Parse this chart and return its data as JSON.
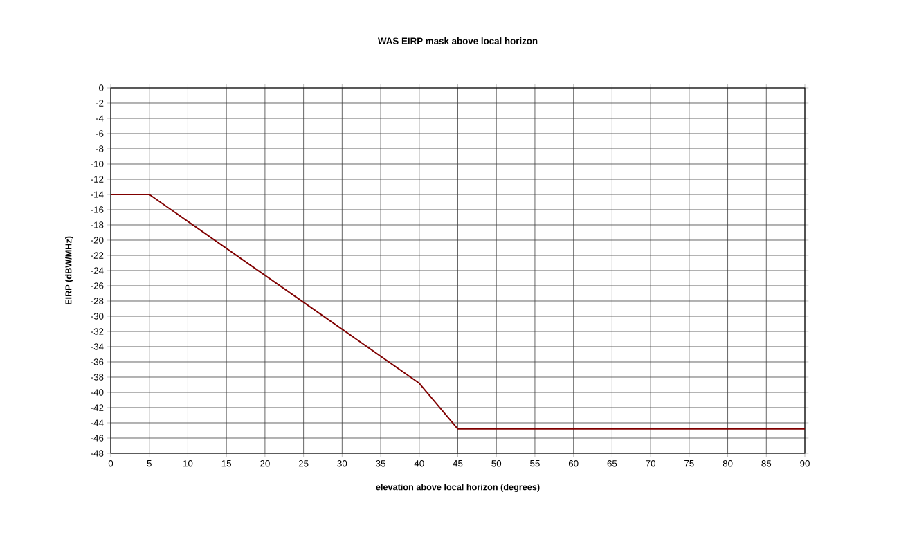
{
  "chart_data": {
    "type": "line",
    "title": "WAS EIRP mask above local horizon",
    "xlabel": "elevation above local horizon (degrees)",
    "ylabel": "EIRP (dBW/MHz)",
    "x": [
      0,
      5,
      40,
      45,
      90
    ],
    "series": [
      {
        "color": "#800000",
        "values": [
          -14,
          -14,
          -38.8,
          -44.8,
          -44.8
        ]
      }
    ],
    "xlim": [
      0,
      90
    ],
    "xticks": [
      0,
      5,
      10,
      15,
      20,
      25,
      30,
      35,
      40,
      45,
      50,
      55,
      60,
      65,
      70,
      75,
      80,
      85,
      90
    ],
    "ylim": [
      -48,
      0
    ],
    "yticks": [
      0,
      -2,
      -4,
      -6,
      -8,
      -10,
      -12,
      -14,
      -16,
      -18,
      -20,
      -22,
      -24,
      -26,
      -28,
      -30,
      -32,
      -34,
      -36,
      -38,
      -40,
      -42,
      -44,
      -46,
      -48
    ],
    "grid": true,
    "marker": "none",
    "line_style": "solid"
  }
}
